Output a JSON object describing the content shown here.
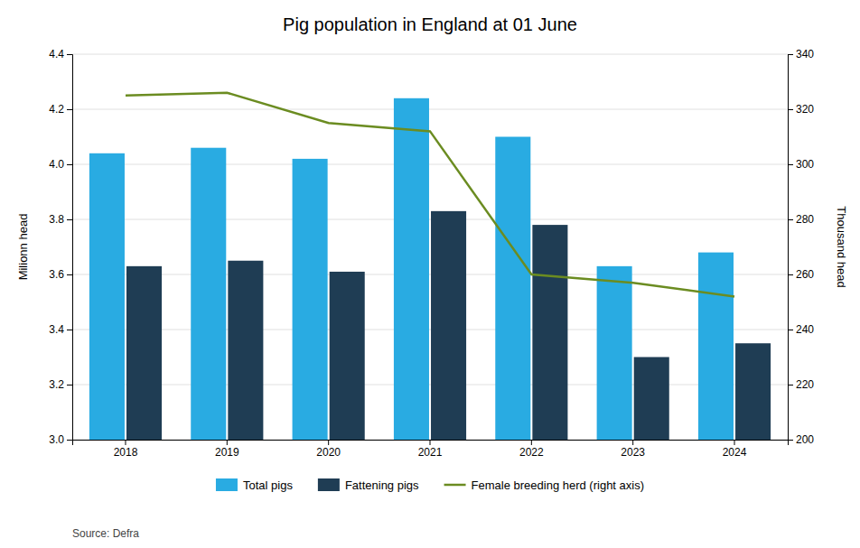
{
  "chart_data": {
    "type": "bar",
    "title": "Pig population in England at 01 June",
    "categories": [
      "2018",
      "2019",
      "2020",
      "2021",
      "2022",
      "2023",
      "2024"
    ],
    "series": [
      {
        "name": "Total pigs",
        "color": "#29ABE2",
        "values": [
          4.04,
          4.06,
          4.02,
          4.24,
          4.1,
          3.63,
          3.68
        ]
      },
      {
        "name": "Fattening pigs",
        "color": "#1F3D54",
        "values": [
          3.63,
          3.65,
          3.61,
          3.83,
          3.78,
          3.3,
          3.35
        ]
      },
      {
        "name": "Female breeding herd (right axis)",
        "type": "line",
        "axis": "y2",
        "color": "#6B8C21",
        "values": [
          325,
          326,
          315,
          312,
          260,
          257,
          252
        ]
      }
    ],
    "y_label": "Milionn head",
    "y2_label": "Thousand head",
    "ylim": [
      3.0,
      4.4
    ],
    "yticks": [
      {
        "value": 3.0,
        "label": "3.0"
      },
      3.2,
      3.4,
      3.6,
      3.8,
      {
        "value": 4.0,
        "label": "4.0"
      },
      4.2,
      4.4
    ],
    "y2lim": [
      200,
      340
    ],
    "y2ticks": [
      200,
      220,
      240,
      260,
      280,
      300,
      320,
      340
    ],
    "grid": true,
    "legend": "bottom",
    "source": "Source: Defra"
  }
}
